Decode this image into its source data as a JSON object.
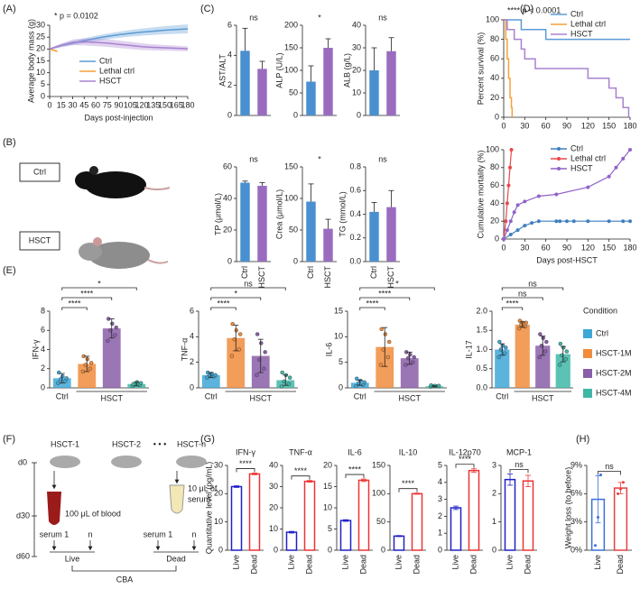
{
  "panel_labels": [
    "(A)",
    "(B)",
    "(C)",
    "(D)",
    "(E)",
    "(F)",
    "(G)",
    "(H)"
  ],
  "panel_b": {
    "labels": [
      "Ctrl",
      "HSCT"
    ]
  },
  "panel_f": {
    "days": [
      "d0",
      "d30",
      "d60"
    ],
    "groups": [
      "HSCT-1",
      "HSCT-2",
      "HSCT-n"
    ],
    "ellipsis": "• • •",
    "blood": "100 μL of blood",
    "serum": [
      "10 μL of",
      "serum"
    ],
    "samples": [
      "serum 1",
      "n",
      "serum 1",
      "n"
    ],
    "outcomes": [
      "Live",
      "Dead"
    ],
    "assay": "CBA"
  },
  "chart_data": [
    {
      "type": "line",
      "annotation": "* p = 0.0102",
      "ylabel": "Average body mass (g)",
      "xlabel": "Days post-injection",
      "xlim": [
        0,
        180
      ],
      "xticks": [
        0,
        15,
        30,
        45,
        60,
        75,
        90,
        105,
        120,
        135,
        150,
        165,
        180
      ],
      "ylim": [
        0,
        30
      ],
      "yticks": [
        0,
        5,
        10,
        15,
        20,
        25,
        30
      ],
      "legend": true,
      "series": [
        {
          "name": "Ctrl",
          "color": "#5b9bd5",
          "x": [
            0,
            15,
            30,
            45,
            60,
            75,
            90,
            105,
            120,
            135,
            150,
            165,
            180
          ],
          "values": [
            20,
            21.5,
            22.5,
            23.5,
            24.5,
            25.3,
            26,
            26.6,
            27.1,
            27.5,
            27.9,
            28.2,
            28.5
          ],
          "errors": [
            0.3,
            0.6,
            0.8,
            1,
            1.1,
            1.2,
            1.3,
            1.4,
            1.5,
            1.6,
            1.7,
            1.8,
            1.9
          ]
        },
        {
          "name": "Lethal ctrl",
          "color": "#f5a13a",
          "x": [
            0,
            5,
            10
          ],
          "values": [
            20,
            19.5,
            19
          ],
          "errors": [
            0.3,
            0.4,
            0.5
          ]
        },
        {
          "name": "HSCT",
          "color": "#a882d0",
          "x": [
            0,
            15,
            30,
            45,
            60,
            75,
            90,
            105,
            120,
            135,
            150,
            165,
            180
          ],
          "values": [
            20,
            21.5,
            22.8,
            23,
            22.8,
            22.5,
            22,
            21.5,
            21,
            20.7,
            20.5,
            20.3,
            20.1
          ],
          "errors": [
            0.3,
            0.8,
            1.2,
            1.5,
            1.6,
            1.6,
            1.6,
            1.5,
            1.4,
            1.3,
            1.2,
            1.1,
            1
          ]
        }
      ]
    },
    {
      "type": "bar",
      "ylabel": "AST/ALT",
      "categories": [
        null,
        null
      ],
      "colors": [
        "#4a90d0",
        "#9a6cc0"
      ],
      "values": [
        4.3,
        3.1
      ],
      "errors": [
        1.5,
        0.5
      ],
      "ylim": [
        0,
        6
      ],
      "yticks": [
        0,
        2,
        4,
        6
      ],
      "significance": "ns"
    },
    {
      "type": "bar",
      "ylabel": "ALP (U/L)",
      "categories": [
        null,
        null
      ],
      "colors": [
        "#4a90d0",
        "#9a6cc0"
      ],
      "values": [
        75,
        150
      ],
      "errors": [
        35,
        20
      ],
      "ylim": [
        0,
        200
      ],
      "yticks": [
        0,
        50,
        100,
        150,
        200
      ],
      "significance": "*"
    },
    {
      "type": "bar",
      "ylabel": "ALB (g/L)",
      "categories": [
        null,
        null
      ],
      "colors": [
        "#4a90d0",
        "#9a6cc0"
      ],
      "values": [
        20,
        28.5
      ],
      "errors": [
        10,
        6
      ],
      "ylim": [
        0,
        40
      ],
      "yticks": [
        0,
        10,
        20,
        30,
        40
      ],
      "significance": "ns"
    },
    {
      "type": "bar",
      "ylabel": "TP (μmol/L)",
      "categories": [
        "Ctrl",
        "HSCT"
      ],
      "colors": [
        "#4a90d0",
        "#9a6cc0"
      ],
      "values": [
        50,
        48
      ],
      "errors": [
        1,
        2
      ],
      "ylim": [
        0,
        60
      ],
      "yticks": [
        0,
        20,
        40,
        60
      ],
      "significance": "ns"
    },
    {
      "type": "bar",
      "ylabel": "Crea (μmol/L)",
      "categories": [
        "Ctrl",
        "HSCT"
      ],
      "colors": [
        "#4a90d0",
        "#9a6cc0"
      ],
      "values": [
        95,
        52
      ],
      "errors": [
        28,
        15
      ],
      "ylim": [
        0,
        150
      ],
      "yticks": [
        0,
        50,
        100,
        150
      ],
      "significance": "*"
    },
    {
      "type": "bar",
      "ylabel": "TG (mmol/L)",
      "categories": [
        "Ctrl",
        "HSCT"
      ],
      "colors": [
        "#4a90d0",
        "#9a6cc0"
      ],
      "values": [
        0.42,
        0.46
      ],
      "errors": [
        0.08,
        0.14
      ],
      "ylim": [
        0,
        0.8
      ],
      "yticks": [
        {
          "value": 0,
          "label": "0.0"
        },
        0.2,
        0.4,
        0.6,
        0.8
      ],
      "significance": "ns"
    },
    {
      "type": "step",
      "annotation": "**** p < 0.0001",
      "ylabel": "Percent survival (%)",
      "xlim": [
        0,
        180
      ],
      "xticks": [
        0,
        30,
        60,
        90,
        120,
        150,
        180
      ],
      "ylim": [
        0,
        100
      ],
      "yticks": [
        0,
        20,
        40,
        60,
        80,
        100
      ],
      "legend": true,
      "series": [
        {
          "name": "Ctrl",
          "color": "#5b9bd5",
          "x": [
            0,
            25,
            60,
            180
          ],
          "values": [
            100,
            90,
            80,
            80
          ]
        },
        {
          "name": "Lethal ctrl",
          "color": "#f5a13a",
          "x": [
            0,
            3,
            5,
            7,
            9,
            11,
            12
          ],
          "values": [
            100,
            80,
            60,
            40,
            20,
            10,
            0
          ]
        },
        {
          "name": "HSCT",
          "color": "#a882d0",
          "x": [
            0,
            5,
            15,
            25,
            30,
            45,
            120,
            150,
            160,
            170,
            178
          ],
          "values": [
            100,
            90,
            80,
            70,
            60,
            50,
            40,
            30,
            20,
            10,
            0
          ]
        }
      ]
    },
    {
      "type": "scatter",
      "ylabel": "Cumulative mortality (%)",
      "xlabel": "Days post-HSCT",
      "xlim": [
        0,
        180
      ],
      "xticks": [
        0,
        30,
        60,
        90,
        120,
        150,
        180
      ],
      "ylim": [
        0,
        100
      ],
      "yticks": [
        0,
        20,
        40,
        60,
        80,
        100
      ],
      "legend": true,
      "series": [
        {
          "name": "Ctrl",
          "color": "#3f7fc0",
          "x": [
            0,
            10,
            20,
            30,
            40,
            50,
            75,
            80,
            90,
            100,
            120,
            150,
            170,
            180
          ],
          "values": [
            0,
            5,
            10,
            15,
            18,
            20,
            20,
            20,
            20,
            20,
            20,
            20,
            20,
            20
          ]
        },
        {
          "name": "Lethal ctrl",
          "color": "#e8474a",
          "x": [
            0,
            3,
            5,
            7,
            9,
            11
          ],
          "values": [
            0,
            20,
            40,
            60,
            80,
            100
          ]
        },
        {
          "name": "HSCT",
          "color": "#9163c8",
          "x": [
            0,
            5,
            10,
            15,
            20,
            30,
            50,
            75,
            120,
            150,
            160,
            170,
            180
          ],
          "values": [
            0,
            10,
            20,
            30,
            38,
            42,
            48,
            50,
            58,
            70,
            80,
            90,
            100
          ]
        }
      ]
    },
    {
      "type": "dotbar",
      "ylabel": "IFN-γ",
      "x_labels": [
        "Ctrl",
        "HSCT"
      ],
      "colors": [
        "#3fa7d6",
        "#f08c3c",
        "#8a5ea8",
        "#3fb7a7"
      ],
      "values": [
        1.0,
        2.5,
        6.2,
        0.4
      ],
      "errors": [
        0.5,
        0.8,
        1.0,
        0.2
      ],
      "points": [
        [
          0.5,
          0.7,
          0.9,
          1.0,
          1.2,
          1.6
        ],
        [
          1.7,
          2.0,
          2.4,
          2.6,
          3.0,
          3.3
        ],
        [
          4.9,
          5.5,
          6.0,
          6.3,
          6.7,
          7.2
        ],
        [
          0.2,
          0.3,
          0.4,
          0.5,
          0.6,
          0.4
        ]
      ],
      "ylim": [
        0,
        8
      ],
      "yticks": [
        0,
        2,
        4,
        6,
        8
      ],
      "brackets": [
        {
          "from": 0,
          "to": 1,
          "label": "****"
        },
        {
          "from": 0,
          "to": 2,
          "label": "****"
        },
        {
          "from": 0,
          "to": 3,
          "label": "*"
        }
      ]
    },
    {
      "type": "dotbar",
      "ylabel": "TNF-α",
      "x_labels": [
        "Ctrl",
        "HSCT"
      ],
      "colors": [
        "#3fa7d6",
        "#f08c3c",
        "#8a5ea8",
        "#3fb7a7"
      ],
      "values": [
        1.0,
        3.9,
        2.5,
        0.6
      ],
      "errors": [
        0.2,
        1.0,
        1.3,
        0.4
      ],
      "points": [
        [
          0.8,
          0.9,
          1.0,
          1.0,
          1.1,
          1.2
        ],
        [
          2.5,
          3.0,
          3.8,
          4.2,
          4.5,
          5.0
        ],
        [
          1.0,
          1.5,
          2.2,
          2.8,
          3.5,
          4.2
        ],
        [
          0.1,
          0.3,
          0.5,
          0.8,
          1.0,
          1.2
        ]
      ],
      "ylim": [
        0,
        6
      ],
      "yticks": [
        0,
        2,
        4,
        6
      ],
      "brackets": [
        {
          "from": 0,
          "to": 1,
          "label": "****"
        },
        {
          "from": 0,
          "to": 2,
          "label": "*"
        },
        {
          "from": 0,
          "to": 3,
          "label": "ns"
        }
      ]
    },
    {
      "type": "dotbar",
      "ylabel": "IL-6",
      "x_labels": [
        "Ctrl",
        "HSCT"
      ],
      "colors": [
        "#3fa7d6",
        "#f08c3c",
        "#8a5ea8",
        "#3fb7a7"
      ],
      "values": [
        1.0,
        8.0,
        5.8,
        0.3
      ],
      "errors": [
        0.5,
        3.8,
        1.2,
        0.1
      ],
      "points": [
        [
          0.3,
          0.6,
          0.9,
          1.1,
          1.4,
          1.8
        ],
        [
          4.5,
          6.0,
          7.5,
          9.0,
          10.5,
          11.5
        ],
        [
          4.5,
          5.0,
          5.8,
          6.0,
          6.5,
          7.0
        ],
        [
          0.2,
          0.3,
          0.3,
          0.4,
          0.4,
          0.5
        ]
      ],
      "ylim": [
        0,
        15
      ],
      "yticks": [
        0,
        5,
        10,
        15
      ],
      "brackets": [
        {
          "from": 0,
          "to": 1,
          "label": "****"
        },
        {
          "from": 0,
          "to": 2,
          "label": "****"
        },
        {
          "from": 0,
          "to": 3,
          "label": "*"
        }
      ]
    },
    {
      "type": "dotbar",
      "ylabel": "IL-17",
      "x_labels": [
        "Ctrl",
        "HSCT"
      ],
      "colors": [
        "#3fa7d6",
        "#f08c3c",
        "#8a5ea8",
        "#3fb7a7"
      ],
      "values": [
        1.0,
        1.65,
        1.1,
        0.88
      ],
      "errors": [
        0.15,
        0.07,
        0.25,
        0.2
      ],
      "points": [
        [
          0.8,
          0.9,
          1.0,
          1.05,
          1.1,
          1.2
        ],
        [
          1.55,
          1.6,
          1.65,
          1.7,
          1.7,
          1.75
        ],
        [
          0.8,
          0.95,
          1.1,
          1.2,
          1.3,
          1.4
        ],
        [
          0.6,
          0.75,
          0.85,
          0.95,
          1.05,
          1.15
        ]
      ],
      "ylim": [
        0,
        2
      ],
      "yticks": [
        {
          "value": 0,
          "label": "0.0"
        },
        0.5,
        {
          "value": 1,
          "label": "1.0"
        },
        1.5,
        {
          "value": 2,
          "label": "2.0"
        }
      ],
      "brackets": [
        {
          "from": 0,
          "to": 1,
          "label": "****"
        },
        {
          "from": 0,
          "to": 2,
          "label": "ns"
        },
        {
          "from": 0,
          "to": 3,
          "label": "ns"
        }
      ],
      "legend_title": "Condition",
      "legend_labels": [
        "Ctrl",
        "HSCT-1M",
        "HSCT-2M",
        "HSCT-4M"
      ]
    },
    {
      "type": "bar",
      "title": "IFN-γ",
      "ylabel": "Quantitative level (pg/mL)",
      "outline": true,
      "bracket": true,
      "categories": [
        "Live",
        "Dead"
      ],
      "colors": [
        "#2020c8",
        "#ee3333"
      ],
      "values": [
        22.5,
        27
      ],
      "errors": [
        0.3,
        0.3
      ],
      "ylim": [
        0,
        30
      ],
      "yticks": [
        0,
        10,
        20,
        30
      ],
      "significance": "****"
    },
    {
      "type": "bar",
      "title": "TNF-α",
      "outline": true,
      "bracket": true,
      "categories": [
        "Live",
        "Dead"
      ],
      "colors": [
        "#2020c8",
        "#ee3333"
      ],
      "values": [
        8.5,
        32.5
      ],
      "errors": [
        0.4,
        0.4
      ],
      "ylim": [
        0,
        40
      ],
      "yticks": [
        0,
        10,
        20,
        30,
        40
      ],
      "significance": "****"
    },
    {
      "type": "bar",
      "title": "IL-6",
      "outline": true,
      "bracket": true,
      "categories": [
        "Live",
        "Dead"
      ],
      "colors": [
        "#2020c8",
        "#ee3333"
      ],
      "values": [
        7,
        16.5
      ],
      "errors": [
        0.2,
        0.3
      ],
      "ylim": [
        0,
        20
      ],
      "yticks": [
        0,
        5,
        10,
        15,
        20
      ],
      "significance": "****"
    },
    {
      "type": "bar",
      "title": "IL-10",
      "outline": true,
      "bracket": true,
      "categories": [
        "Live",
        "Dead"
      ],
      "colors": [
        "#2020c8",
        "#ee3333"
      ],
      "values": [
        25,
        100
      ],
      "errors": [
        1,
        1
      ],
      "ylim": [
        0,
        150
      ],
      "yticks": [
        0,
        50,
        100,
        150
      ],
      "significance": "****"
    },
    {
      "type": "bar",
      "title": "IL-12p70",
      "outline": true,
      "bracket": true,
      "categories": [
        "Live",
        "Dead"
      ],
      "colors": [
        "#2020c8",
        "#ee3333"
      ],
      "values": [
        2.5,
        4.7
      ],
      "errors": [
        0.1,
        0.1
      ],
      "ylim": [
        0,
        5
      ],
      "yticks": [
        0,
        1,
        2,
        3,
        4,
        5
      ],
      "significance": "****"
    },
    {
      "type": "bar",
      "title": "MCP-1",
      "outline": true,
      "bracket": true,
      "categories": [
        "Live",
        "Dead"
      ],
      "colors": [
        "#2020c8",
        "#ee3333"
      ],
      "values": [
        2.5,
        2.45
      ],
      "errors": [
        0.2,
        0.2
      ],
      "ylim": [
        0,
        3
      ],
      "yticks": [
        0,
        1,
        2,
        3
      ],
      "significance": "ns"
    },
    {
      "type": "bar",
      "ylabel": "Weight loss (to before)",
      "outline": true,
      "bracket": true,
      "categories": [
        "Live",
        "Dead"
      ],
      "colors": [
        "#3a6fd8",
        "#e84040"
      ],
      "values": [
        5.4,
        6.6
      ],
      "errors": [
        2.5,
        0.6
      ],
      "points": [
        [
          0.5,
          3.5,
          8
        ],
        [
          6.0,
          6.5,
          7.2
        ]
      ],
      "ylim": [
        0,
        9
      ],
      "yticks": [
        {
          "value": 0,
          "label": "0%"
        },
        {
          "value": 3,
          "label": "3%"
        },
        {
          "value": 6,
          "label": "6%"
        },
        {
          "value": 9,
          "label": "9%"
        }
      ],
      "significance": "ns"
    }
  ]
}
